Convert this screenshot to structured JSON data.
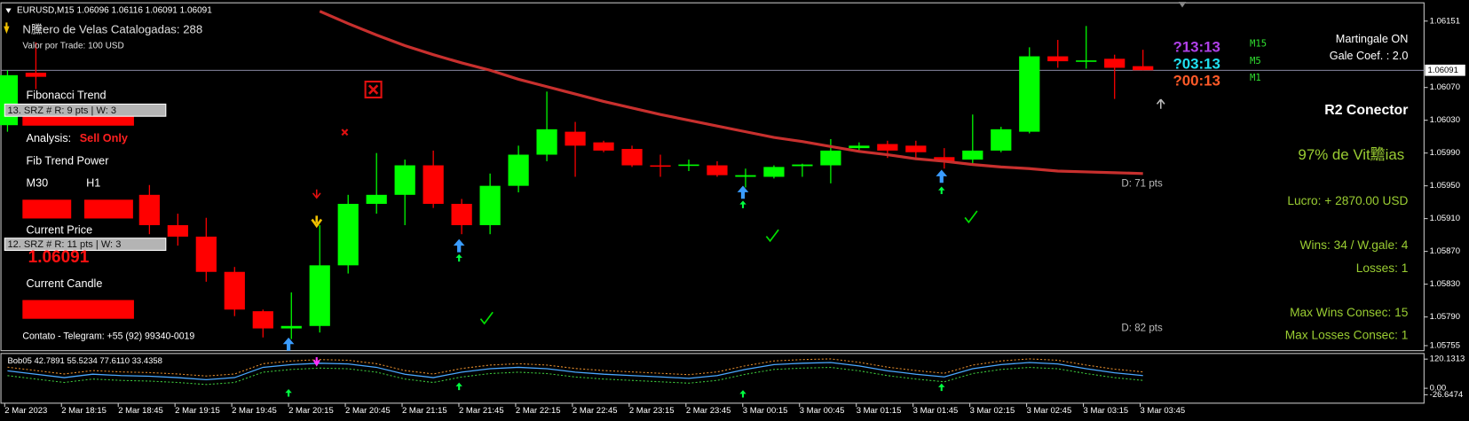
{
  "header": {
    "symbol": "EURUSD,M15",
    "ohlc": "1.06096 1.06116 1.06091 1.06091"
  },
  "panel": {
    "candles_count": "N黱ero de Velas Catalogadas: 288",
    "trade_value": "Valor por Trade: 100 USD",
    "fib_trend": "Fibonacci Trend",
    "srz_1": "13. SRZ # R: 9 pts | W: 3",
    "analysis_label": "Analysis:",
    "analysis_value": "Sell Only",
    "fib_power": "Fib Trend Power",
    "tf_1": "M30",
    "tf_2": "H1",
    "current_price": "Current Price",
    "srz_2": "12. SRZ # R: 11 pts | W: 3",
    "current_candle": "Current Candle",
    "contact": "Contato - Telegram: +55 (92) 99340-0019"
  },
  "timers": [
    {
      "time": "?13:13",
      "tf": "M15",
      "color": "#b040e8"
    },
    {
      "time": "?03:13",
      "tf": "M5",
      "color": "#20e0f0"
    },
    {
      "time": "?00:13",
      "tf": "M1",
      "color": "#ff5a28"
    }
  ],
  "stats": {
    "martingale": "Martingale ON",
    "gale_coef": "Gale Coef. : 2.0",
    "connector": "R2 Conector",
    "win_rate": "97% de Vit黵ias",
    "profit": "Lucro: + 2870.00 USD",
    "wins": "Wins: 34 / W.gale: 4",
    "losses": "Losses: 1",
    "max_wins": "Max Wins Consec: 15",
    "max_losses": "Max Losses Consec: 1"
  },
  "distances": [
    "D: 71 pts",
    "D: 82 pts"
  ],
  "chart_data": [
    {
      "type": "candlestick",
      "bull_color": "#00ff00",
      "bear_color": "#ff0000",
      "categories": [
        "2 Mar 2023",
        null,
        "2 Mar 18:15",
        null,
        "2 Mar 18:45",
        null,
        "2 Mar 19:15",
        null,
        "2 Mar 19:45",
        null,
        "2 Mar 20:15",
        null,
        "2 Mar 20:45",
        null,
        "2 Mar 21:15",
        null,
        "2 Mar 21:45",
        null,
        "2 Mar 22:15",
        null,
        "2 Mar 22:45",
        null,
        "2 Mar 23:15",
        null,
        "2 Mar 23:45",
        null,
        "3 Mar 00:15",
        null,
        "3 Mar 00:45",
        null,
        "3 Mar 01:15",
        null,
        "3 Mar 01:45",
        null,
        "3 Mar 02:15",
        null,
        "3 Mar 02:45",
        null,
        "3 Mar 03:15",
        null,
        "3 Mar 03:45"
      ],
      "open": [
        1.06024,
        1.06088,
        null,
        null,
        null,
        1.05939,
        1.05902,
        1.05888,
        1.05845,
        1.05797,
        1.05776,
        1.05779,
        1.05853,
        1.05928,
        1.05939,
        1.05975,
        1.05928,
        1.05902,
        1.0595,
        1.05988,
        1.06016,
        1.06003,
        1.05995,
        1.05975,
        1.05975,
        1.05975,
        1.05961,
        1.05961,
        1.05974,
        1.05975,
        1.05996,
        1.06001,
        1.05999,
        1.05985,
        1.05982,
        1.05993,
        1.06016,
        1.06108,
        1.06103,
        1.06105,
        1.06096
      ],
      "high": [
        1.06091,
        1.06125,
        null,
        null,
        null,
        1.05951,
        1.05916,
        1.05911,
        1.05851,
        1.05799,
        1.0582,
        1.05902,
        1.05939,
        1.0599,
        1.05982,
        1.05993,
        1.05934,
        1.05965,
        1.05999,
        1.06065,
        1.06028,
        1.06005,
        1.05999,
        1.05988,
        1.05982,
        1.0598,
        1.05971,
        1.05975,
        1.05977,
        1.06007,
        1.06003,
        1.06005,
        1.06005,
        1.05996,
        1.06037,
        1.06022,
        1.06119,
        1.06128,
        1.06145,
        1.0611,
        1.06116
      ],
      "low": [
        1.06016,
        1.06068,
        null,
        null,
        null,
        1.05891,
        1.05877,
        1.05833,
        1.05791,
        1.05765,
        1.05763,
        1.05771,
        1.05843,
        1.05916,
        1.05902,
        1.05923,
        1.05891,
        1.05891,
        1.05942,
        1.0598,
        1.05961,
        1.05991,
        1.05973,
        1.05961,
        1.05968,
        1.05961,
        1.05948,
        1.05959,
        1.05961,
        1.05953,
        1.05991,
        1.05984,
        1.05984,
        1.05971,
        1.05975,
        1.05991,
        1.06014,
        1.06094,
        1.06093,
        1.06056,
        1.06091
      ],
      "close": [
        1.06085,
        1.06083,
        null,
        null,
        null,
        1.05902,
        1.05888,
        1.05845,
        1.05799,
        1.05776,
        1.05779,
        1.05853,
        1.05928,
        1.05939,
        1.05975,
        1.05928,
        1.05902,
        1.0595,
        1.05988,
        1.06019,
        1.05999,
        1.05993,
        1.05975,
        1.05974,
        1.05976,
        1.05963,
        1.05963,
        1.05973,
        1.05976,
        1.05993,
        1.05999,
        1.05993,
        1.05991,
        1.0598,
        1.05993,
        1.06019,
        1.06108,
        1.06102,
        1.06103,
        1.06094,
        1.06091
      ],
      "ma": {
        "color": "#c8302e",
        "values": [
          null,
          null,
          null,
          null,
          null,
          null,
          null,
          null,
          null,
          null,
          null,
          1.06163,
          1.06148,
          1.06134,
          1.06121,
          1.0611,
          1.061,
          1.06091,
          1.0608,
          1.06071,
          1.06062,
          1.06053,
          1.06045,
          1.06037,
          1.0603,
          1.06023,
          1.06016,
          1.06009,
          1.06004,
          1.05998,
          1.05992,
          1.05988,
          1.05983,
          1.0598,
          1.05976,
          1.05973,
          1.05971,
          1.05968,
          1.05967,
          1.05966,
          1.05965
        ]
      },
      "current_price": {
        "value": 1.06091,
        "label": "1.06091"
      },
      "ylim": [
        1.0575,
        1.06171
      ],
      "yticks": [
        1.06151,
        {
          "value": 1.0607,
          "label": "1.06070"
        },
        {
          "value": 1.0603,
          "label": "1.06030"
        },
        {
          "value": 1.0599,
          "label": "1.05990"
        },
        {
          "value": 1.0595,
          "label": "1.05950"
        },
        {
          "value": 1.0591,
          "label": "1.05910"
        },
        {
          "value": 1.0587,
          "label": "1.05870"
        },
        {
          "value": 1.0583,
          "label": "1.05830"
        },
        {
          "value": 1.0579,
          "label": "1.05790"
        },
        1.05755
      ]
    },
    {
      "type": "line",
      "title": "Bob05 42.7891 55.5234 77.6110 33.4358",
      "series": [
        {
          "color": "#e08a2c",
          "values": [
            87.1,
            73.0,
            58.9,
            73.0,
            67.4,
            64.6,
            58.9,
            50.5,
            58.9,
            101.3,
            112.6,
            118.2,
            115.4,
            101.3,
            73.0,
            58.9,
            81.5,
            95.6,
            101.3,
            95.6,
            81.5,
            73.0,
            67.4,
            61.7,
            56.1,
            67.4,
            92.8,
            112.6,
            118.2,
            121.0,
            106.9,
            87.1,
            73.0,
            61.7,
            95.6,
            112.6,
            121.0,
            115.4,
            95.6,
            78.7,
            67.4
          ]
        },
        {
          "color": "#4aa8ff",
          "values": [
            72.1,
            58.0,
            43.9,
            58.0,
            52.4,
            49.6,
            43.9,
            35.5,
            43.9,
            86.3,
            97.6,
            103.2,
            100.4,
            86.3,
            58.0,
            43.9,
            66.5,
            80.6,
            86.3,
            80.6,
            66.5,
            58.0,
            52.4,
            46.7,
            41.1,
            52.4,
            77.8,
            97.6,
            103.2,
            106.0,
            91.9,
            72.1,
            58.0,
            46.7,
            80.6,
            97.6,
            106.0,
            100.4,
            80.6,
            63.7,
            52.4
          ]
        },
        {
          "color": "#3cc83c",
          "values": [
            52.1,
            38.0,
            23.9,
            38.0,
            32.4,
            29.6,
            23.9,
            15.5,
            23.9,
            66.3,
            77.6,
            83.2,
            80.4,
            66.3,
            38.0,
            23.9,
            46.5,
            60.6,
            66.3,
            60.6,
            46.5,
            38.0,
            32.4,
            26.7,
            21.1,
            32.4,
            57.8,
            77.6,
            83.2,
            86.0,
            71.9,
            52.1,
            38.0,
            26.7,
            60.6,
            77.6,
            86.0,
            80.4,
            60.6,
            43.7,
            32.4
          ]
        }
      ],
      "ylim": [
        -26.6474,
        120.1313
      ],
      "yticks": [
        120.1313,
        {
          "value": 0,
          "label": "0.00"
        },
        -26.6474
      ]
    }
  ]
}
